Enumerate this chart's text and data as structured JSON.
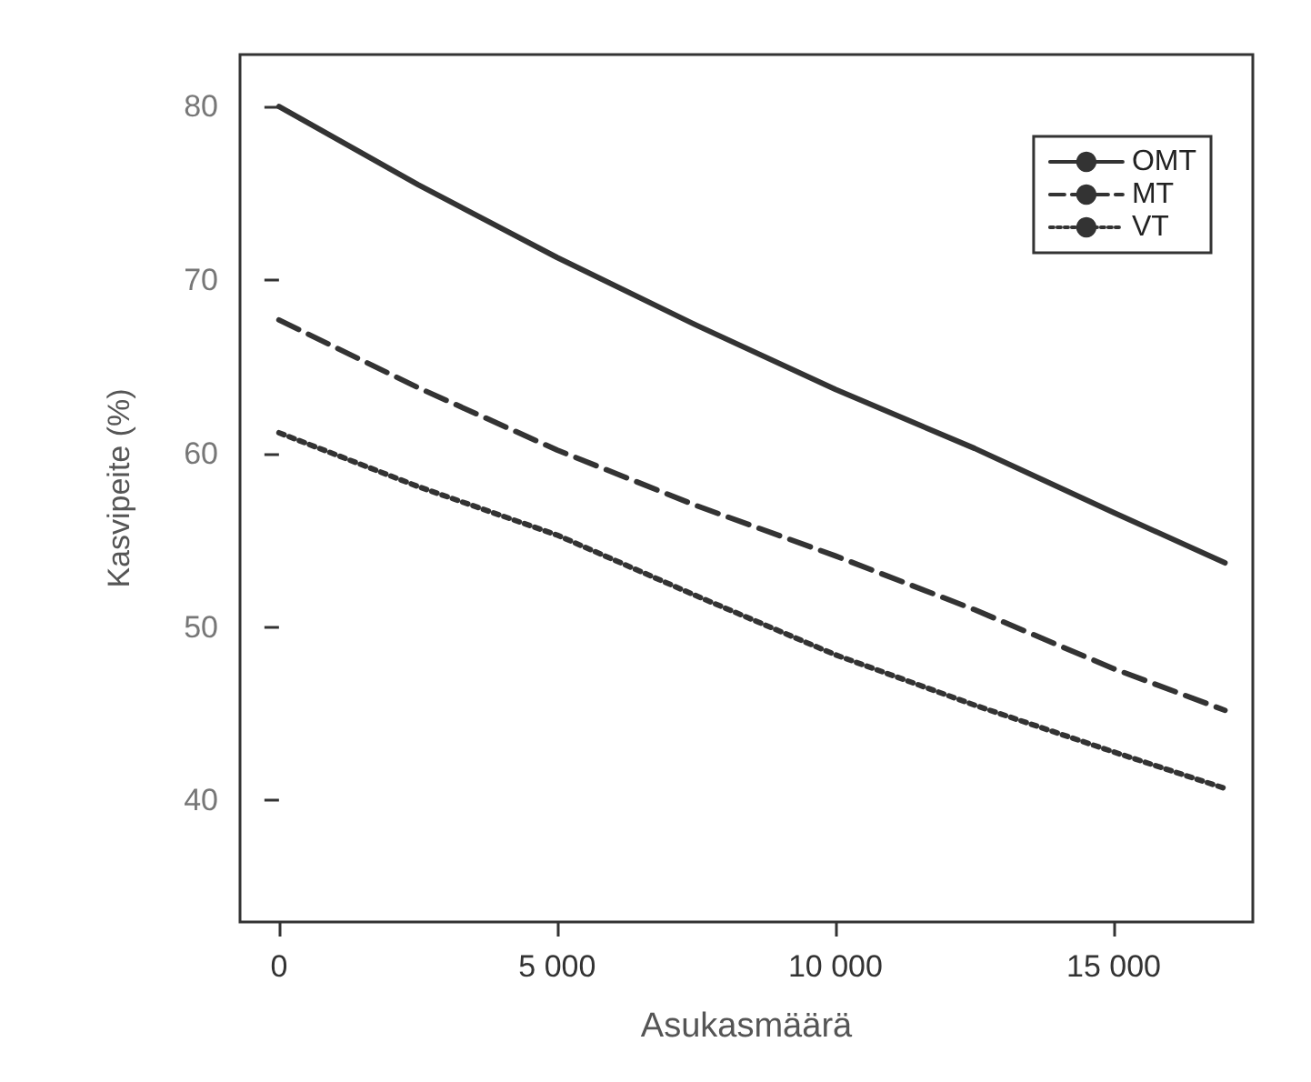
{
  "chart_data": {
    "type": "line",
    "xlabel": "Asukasmäärä",
    "ylabel": "Kasvipeite (%)",
    "x": [
      0,
      2500,
      5000,
      7500,
      10000,
      12500,
      15000,
      17000
    ],
    "series": [
      {
        "name": "OMT",
        "color": "#333333",
        "line_style": "solid",
        "values": [
          80,
          75.5,
          71.3,
          67.4,
          63.7,
          60.3,
          56.6,
          53.7
        ]
      },
      {
        "name": "MT",
        "color": "#333333",
        "line_style": "dashed",
        "values": [
          67.7,
          63.8,
          60.2,
          57,
          54.1,
          51,
          47.6,
          45.2
        ]
      },
      {
        "name": "VT",
        "color": "#333333",
        "line_style": "dotted",
        "values": [
          61.2,
          58.1,
          55.3,
          51.8,
          48.4,
          45.5,
          42.8,
          40.7
        ]
      }
    ],
    "xlim": [
      -700,
      17500
    ],
    "xticks": [
      {
        "value": 0,
        "label": "0"
      },
      {
        "value": 5000,
        "label": "5 000"
      },
      {
        "value": 10000,
        "label": "10 000"
      },
      {
        "value": 15000,
        "label": "15 000"
      }
    ],
    "ylim": [
      33,
      83
    ],
    "yticks": [
      40,
      50,
      60,
      70,
      80
    ],
    "grid": false,
    "legend": "top right",
    "marker": "none"
  }
}
